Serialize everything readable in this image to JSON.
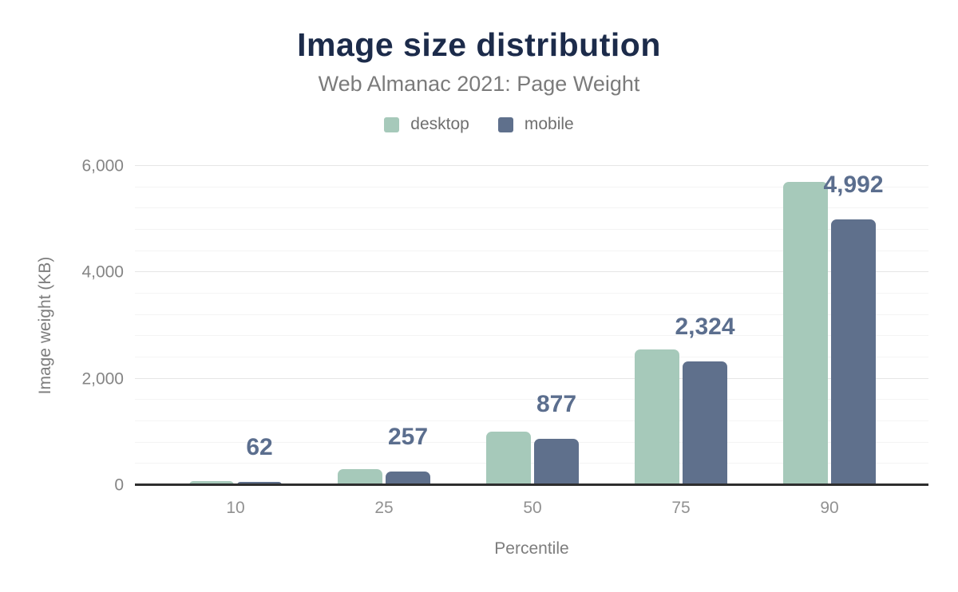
{
  "header": {
    "title": "Image size distribution",
    "subtitle": "Web Almanac 2021: Page Weight"
  },
  "legend": [
    {
      "label": "desktop",
      "color": "#a6c9ba"
    },
    {
      "label": "mobile",
      "color": "#5f708c"
    }
  ],
  "chart_data": {
    "type": "bar",
    "title": "Image size distribution",
    "subtitle": "Web Almanac 2021: Page Weight",
    "categories": [
      "10",
      "25",
      "50",
      "75",
      "90"
    ],
    "series": [
      {
        "name": "desktop",
        "color": "#a6c9ba",
        "values": [
          75,
          300,
          1000,
          2550,
          5700
        ]
      },
      {
        "name": "mobile",
        "color": "#5f708c",
        "values": [
          62,
          257,
          877,
          2324,
          4992
        ]
      }
    ],
    "data_labels": {
      "series": "mobile",
      "values": [
        "62",
        "257",
        "877",
        "2,324",
        "4,992"
      ],
      "color": "#5b6e8e"
    },
    "xlabel": "Percentile",
    "ylabel": "Image weight (KB)",
    "ylim": [
      0,
      6000
    ],
    "yticks": [
      {
        "value": 0,
        "label": "0"
      },
      {
        "value": 2000,
        "label": "2,000"
      },
      {
        "value": 4000,
        "label": "4,000"
      },
      {
        "value": 6000,
        "label": "6,000"
      }
    ],
    "grid": {
      "minor_step": 400,
      "major_step": 2000,
      "minor_color": "#f4f4f4",
      "major_color": "#e6e6e6"
    },
    "legend_position": "top",
    "colors": {
      "title": "#1c2b4a",
      "axis_text": "#858585",
      "baseline": "#2e2e2e"
    }
  }
}
